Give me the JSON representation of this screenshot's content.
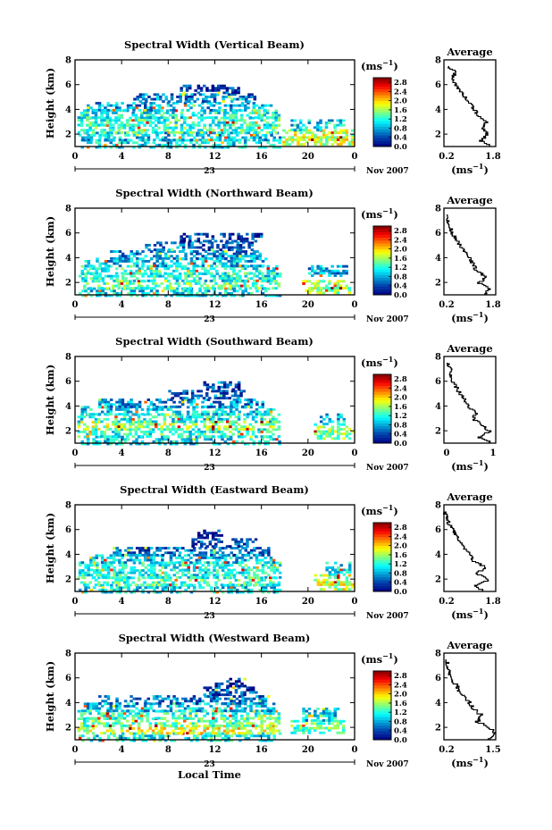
{
  "figure": {
    "xlabel": "Local Time",
    "date_label": "Nov 2007",
    "day_label": "23",
    "colorbar_unit": "(ms",
    "colorbar_unit_sup": "−1",
    "colorbar_unit_close": ")",
    "avg_unit": "(ms",
    "avg_unit_sup": "−1",
    "avg_unit_close": ")",
    "ylabel": "Height (km)",
    "avg_title": "Average"
  },
  "chart_data": [
    {
      "type": "heatmap",
      "title": "Spectral Width (Vertical Beam)",
      "xlim": [
        0,
        24
      ],
      "ylim": [
        1,
        8
      ],
      "xticks": [
        "0",
        "4",
        "8",
        "12",
        "16",
        "20",
        "0"
      ],
      "yticks": [
        "2",
        "4",
        "6",
        "8"
      ],
      "colorbar_ticks": [
        "0.0",
        "0.4",
        "0.8",
        "1.2",
        "1.6",
        "2.0",
        "2.4",
        "2.8"
      ],
      "colorbar_range": [
        0,
        3
      ],
      "layers": [
        {
          "y": [
            1.0,
            1.6
          ],
          "x": [
            0.5,
            17.5
          ],
          "value": 1.0
        },
        {
          "y": [
            1.6,
            2.2
          ],
          "x": [
            0.3,
            17.5
          ],
          "value": 0.9
        },
        {
          "y": [
            2.2,
            2.8
          ],
          "x": [
            0.2,
            17.5
          ],
          "value": 1.3
        },
        {
          "y": [
            2.8,
            3.4
          ],
          "x": [
            0.2,
            17.5
          ],
          "value": 1.2
        },
        {
          "y": [
            3.4,
            4.0
          ],
          "x": [
            0.2,
            17.5
          ],
          "value": 1.1
        },
        {
          "y": [
            4.0,
            4.6
          ],
          "x": [
            1.0,
            16.8
          ],
          "value": 0.8
        },
        {
          "y": [
            4.6,
            5.3
          ],
          "x": [
            5.0,
            15.5
          ],
          "value": 0.6
        },
        {
          "y": [
            5.3,
            6.0
          ],
          "x": [
            9.0,
            14.0
          ],
          "value": 0.3
        },
        {
          "y": [
            1.2,
            2.4
          ],
          "x": [
            17.8,
            23.8
          ],
          "value": 1.7
        },
        {
          "y": [
            2.4,
            3.2
          ],
          "x": [
            18.5,
            23.0
          ],
          "value": 1.0
        }
      ],
      "average": {
        "xlim": [
          0.2,
          1.8
        ],
        "xticks": [
          "0.2",
          "1.8"
        ],
        "height": [
          1.0,
          1.5,
          2.0,
          2.5,
          3.0,
          3.5,
          4.0,
          4.5,
          5.0,
          5.5,
          6.0,
          6.5,
          7.0,
          7.5
        ],
        "value": [
          1.7,
          1.35,
          1.55,
          1.4,
          1.5,
          1.25,
          1.15,
          1.0,
          0.85,
          0.7,
          0.55,
          0.45,
          0.55,
          0.35
        ]
      }
    },
    {
      "type": "heatmap",
      "title": "Spectral Width (Northward Beam)",
      "xlim": [
        0,
        24
      ],
      "ylim": [
        1,
        8
      ],
      "xticks": [
        "0",
        "4",
        "8",
        "12",
        "16",
        "20",
        "0"
      ],
      "yticks": [
        "2",
        "4",
        "6",
        "8"
      ],
      "colorbar_ticks": [
        "0.0",
        "0.4",
        "0.8",
        "1.2",
        "1.6",
        "2.0",
        "2.4",
        "2.8"
      ],
      "colorbar_range": [
        0,
        3
      ],
      "layers": [
        {
          "y": [
            1.0,
            1.6
          ],
          "x": [
            0.3,
            17.5
          ],
          "value": 1.0
        },
        {
          "y": [
            1.6,
            2.2
          ],
          "x": [
            0.2,
            17.5
          ],
          "value": 1.4
        },
        {
          "y": [
            2.2,
            2.8
          ],
          "x": [
            0.3,
            17.5
          ],
          "value": 1.1
        },
        {
          "y": [
            2.8,
            3.4
          ],
          "x": [
            0.5,
            17.3
          ],
          "value": 1.2
        },
        {
          "y": [
            3.4,
            4.0
          ],
          "x": [
            0.8,
            16.5
          ],
          "value": 0.9
        },
        {
          "y": [
            4.0,
            4.6
          ],
          "x": [
            3.0,
            16.0
          ],
          "value": 0.7
        },
        {
          "y": [
            4.6,
            5.3
          ],
          "x": [
            6.0,
            15.5
          ],
          "value": 0.5
        },
        {
          "y": [
            5.3,
            6.0
          ],
          "x": [
            9.0,
            16.0
          ],
          "value": 0.3
        },
        {
          "y": [
            1.2,
            2.2
          ],
          "x": [
            19.5,
            23.5
          ],
          "value": 1.6
        },
        {
          "y": [
            2.6,
            3.4
          ],
          "x": [
            20.0,
            23.2
          ],
          "value": 0.8
        }
      ],
      "average": {
        "xlim": [
          0.2,
          1.8
        ],
        "xticks": [
          "0.2",
          "1.8"
        ],
        "height": [
          1.0,
          1.5,
          2.0,
          2.5,
          3.0,
          3.5,
          4.0,
          4.5,
          5.0,
          5.5,
          6.0,
          6.5,
          7.0,
          7.5
        ],
        "value": [
          1.45,
          1.6,
          1.3,
          1.5,
          1.2,
          1.1,
          1.0,
          0.85,
          0.7,
          0.6,
          0.45,
          0.4,
          0.3,
          0.3
        ]
      }
    },
    {
      "type": "heatmap",
      "title": "Spectral Width (Southward Beam)",
      "xlim": [
        0,
        24
      ],
      "ylim": [
        1,
        8
      ],
      "xticks": [
        "0",
        "4",
        "8",
        "12",
        "16",
        "20",
        "0"
      ],
      "yticks": [
        "2",
        "4",
        "6",
        "8"
      ],
      "colorbar_ticks": [
        "0.0",
        "0.4",
        "0.8",
        "1.2",
        "1.6",
        "2.0",
        "2.4",
        "2.8"
      ],
      "colorbar_range": [
        0,
        3
      ],
      "layers": [
        {
          "y": [
            1.0,
            1.6
          ],
          "x": [
            0.5,
            17.5
          ],
          "value": 1.0
        },
        {
          "y": [
            1.6,
            2.2
          ],
          "x": [
            0.2,
            17.5
          ],
          "value": 1.2
        },
        {
          "y": [
            2.2,
            2.8
          ],
          "x": [
            0.2,
            17.5
          ],
          "value": 1.6
        },
        {
          "y": [
            2.8,
            3.4
          ],
          "x": [
            0.2,
            17.5
          ],
          "value": 1.1
        },
        {
          "y": [
            3.4,
            4.0
          ],
          "x": [
            0.5,
            17.0
          ],
          "value": 1.0
        },
        {
          "y": [
            4.0,
            4.6
          ],
          "x": [
            2.0,
            16.0
          ],
          "value": 0.7
        },
        {
          "y": [
            4.6,
            5.3
          ],
          "x": [
            8.0,
            14.5
          ],
          "value": 0.5
        },
        {
          "y": [
            5.3,
            6.0
          ],
          "x": [
            11.0,
            14.0
          ],
          "value": 0.3
        },
        {
          "y": [
            1.4,
            2.6
          ],
          "x": [
            20.5,
            23.8
          ],
          "value": 1.5
        },
        {
          "y": [
            2.6,
            3.4
          ],
          "x": [
            21.0,
            23.0
          ],
          "value": 0.9
        }
      ],
      "average": {
        "xlim": [
          0,
          1.6
        ],
        "xticks": [
          "0",
          "1"
        ],
        "height": [
          1.0,
          1.5,
          2.0,
          2.5,
          3.0,
          3.5,
          4.0,
          4.5,
          5.0,
          5.5,
          6.0,
          6.5,
          7.0,
          7.5
        ],
        "value": [
          1.5,
          1.1,
          1.4,
          1.2,
          0.9,
          1.0,
          0.75,
          0.65,
          0.5,
          0.4,
          0.3,
          0.2,
          0.25,
          0.1
        ]
      }
    },
    {
      "type": "heatmap",
      "title": "Spectral Width (Eastward Beam)",
      "xlim": [
        0,
        24
      ],
      "ylim": [
        1,
        8
      ],
      "xticks": [
        "0",
        "4",
        "8",
        "12",
        "16",
        "20",
        "0"
      ],
      "yticks": [
        "2",
        "4",
        "6",
        "8"
      ],
      "colorbar_ticks": [
        "0.0",
        "0.4",
        "0.8",
        "1.2",
        "1.6",
        "2.0",
        "2.4",
        "2.8"
      ],
      "colorbar_range": [
        0,
        3
      ],
      "layers": [
        {
          "y": [
            1.0,
            1.6
          ],
          "x": [
            0.3,
            17.5
          ],
          "value": 1.0
        },
        {
          "y": [
            1.6,
            2.2
          ],
          "x": [
            0.2,
            17.5
          ],
          "value": 1.3
        },
        {
          "y": [
            2.2,
            2.8
          ],
          "x": [
            0.3,
            17.5
          ],
          "value": 1.1
        },
        {
          "y": [
            2.8,
            3.4
          ],
          "x": [
            0.3,
            17.5
          ],
          "value": 1.2
        },
        {
          "y": [
            3.4,
            4.0
          ],
          "x": [
            0.5,
            17.0
          ],
          "value": 0.9
        },
        {
          "y": [
            4.0,
            4.6
          ],
          "x": [
            3.0,
            16.5
          ],
          "value": 0.6
        },
        {
          "y": [
            4.6,
            5.3
          ],
          "x": [
            10.0,
            15.5
          ],
          "value": 0.35
        },
        {
          "y": [
            5.3,
            6.0
          ],
          "x": [
            10.5,
            12.5
          ],
          "value": 0.2
        },
        {
          "y": [
            1.2,
            2.4
          ],
          "x": [
            20.5,
            23.8
          ],
          "value": 1.7
        },
        {
          "y": [
            2.4,
            3.4
          ],
          "x": [
            21.5,
            23.5
          ],
          "value": 1.0
        }
      ],
      "average": {
        "xlim": [
          0.2,
          1.8
        ],
        "xticks": [
          "0.2",
          "1.8"
        ],
        "height": [
          1.0,
          1.5,
          2.0,
          2.5,
          3.0,
          3.5,
          4.0,
          4.5,
          5.0,
          5.5,
          6.0,
          6.5,
          7.0,
          7.5
        ],
        "value": [
          1.5,
          1.1,
          1.6,
          1.2,
          1.5,
          1.1,
          1.0,
          0.85,
          0.75,
          0.6,
          0.5,
          0.35,
          0.3,
          0.2
        ]
      }
    },
    {
      "type": "heatmap",
      "title": "Spectral Width (Westward Beam)",
      "xlim": [
        0,
        24
      ],
      "ylim": [
        1,
        8
      ],
      "xticks": [
        "0",
        "4",
        "8",
        "12",
        "16",
        "20",
        "0"
      ],
      "yticks": [
        "2",
        "4",
        "6",
        "8"
      ],
      "colorbar_ticks": [
        "0.0",
        "0.4",
        "0.8",
        "1.2",
        "1.6",
        "2.0",
        "2.4",
        "2.8"
      ],
      "colorbar_range": [
        0,
        3
      ],
      "layers": [
        {
          "y": [
            1.0,
            1.6
          ],
          "x": [
            0.3,
            17.5
          ],
          "value": 1.1
        },
        {
          "y": [
            1.6,
            2.2
          ],
          "x": [
            0.2,
            17.5
          ],
          "value": 1.8
        },
        {
          "y": [
            2.2,
            2.8
          ],
          "x": [
            0.2,
            17.5
          ],
          "value": 1.4
        },
        {
          "y": [
            2.8,
            3.4
          ],
          "x": [
            0.2,
            17.5
          ],
          "value": 1.2
        },
        {
          "y": [
            3.4,
            4.0
          ],
          "x": [
            0.5,
            17.0
          ],
          "value": 0.9
        },
        {
          "y": [
            4.0,
            4.6
          ],
          "x": [
            2.0,
            16.5
          ],
          "value": 0.6
        },
        {
          "y": [
            4.6,
            5.3
          ],
          "x": [
            11.0,
            15.5
          ],
          "value": 0.4
        },
        {
          "y": [
            5.3,
            6.0
          ],
          "x": [
            12.0,
            14.5
          ],
          "value": 0.2
        },
        {
          "y": [
            1.6,
            2.6
          ],
          "x": [
            18.5,
            23.0
          ],
          "value": 1.4
        },
        {
          "y": [
            2.6,
            3.6
          ],
          "x": [
            19.5,
            22.5
          ],
          "value": 0.9
        }
      ],
      "average": {
        "xlim": [
          0.2,
          1.5
        ],
        "xticks": [
          "0.2",
          "1.5"
        ],
        "height": [
          1.0,
          1.5,
          2.0,
          2.5,
          3.0,
          3.5,
          4.0,
          4.5,
          5.0,
          5.5,
          6.0,
          6.5,
          7.0,
          7.5
        ],
        "value": [
          1.3,
          1.5,
          1.35,
          1.05,
          1.15,
          0.95,
          0.85,
          0.75,
          0.6,
          0.5,
          0.4,
          0.3,
          0.3,
          0.25
        ]
      }
    }
  ]
}
